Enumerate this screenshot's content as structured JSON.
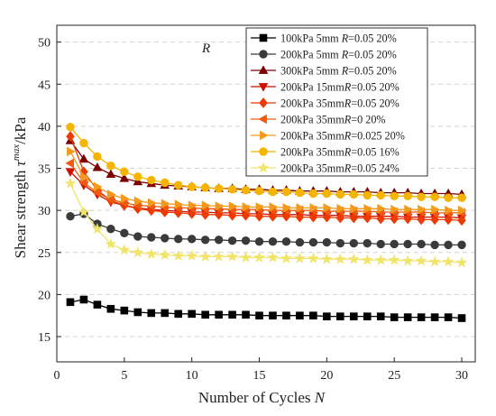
{
  "chart_data": {
    "type": "line",
    "xlabel": {
      "prefix": "Number of Cycles ",
      "var": "N"
    },
    "ylabel": {
      "prefix": "Shear strength ",
      "var": "τ",
      "sup": "max",
      "suffix": "/kPa"
    },
    "annotation": "R",
    "xlim": [
      0,
      31
    ],
    "ylim": [
      12,
      52
    ],
    "xticks": [
      0,
      5,
      10,
      15,
      20,
      25,
      30
    ],
    "yticks": [
      15,
      20,
      25,
      30,
      35,
      40,
      45,
      50
    ],
    "grid": "horizontal-dashed",
    "legend_position": "top-right",
    "x": [
      1,
      2,
      3,
      4,
      5,
      6,
      7,
      8,
      9,
      10,
      11,
      12,
      13,
      14,
      15,
      16,
      17,
      18,
      19,
      20,
      21,
      22,
      23,
      24,
      25,
      26,
      27,
      28,
      29,
      30
    ],
    "series": [
      {
        "name_parts": [
          "100kPa 5mm ",
          "R",
          "=0.05 20%"
        ],
        "color": "#000000",
        "marker": "square",
        "values": [
          19.1,
          19.4,
          18.8,
          18.3,
          18.1,
          17.9,
          17.8,
          17.8,
          17.7,
          17.7,
          17.6,
          17.6,
          17.6,
          17.6,
          17.5,
          17.5,
          17.5,
          17.5,
          17.5,
          17.4,
          17.4,
          17.4,
          17.4,
          17.4,
          17.3,
          17.3,
          17.3,
          17.3,
          17.3,
          17.2
        ]
      },
      {
        "name_parts": [
          "200kPa 5mm ",
          "R",
          "=0.05 20%"
        ],
        "color": "#3a3a3a",
        "marker": "circle",
        "values": [
          29.3,
          29.6,
          28.4,
          27.8,
          27.3,
          26.9,
          26.8,
          26.7,
          26.6,
          26.6,
          26.5,
          26.5,
          26.4,
          26.4,
          26.3,
          26.3,
          26.3,
          26.2,
          26.2,
          26.2,
          26.1,
          26.1,
          26.1,
          26.0,
          26.0,
          26.0,
          26.0,
          25.9,
          25.9,
          25.9
        ]
      },
      {
        "name_parts": [
          "300kPa 5mm ",
          "R",
          "=0.05 20%"
        ],
        "color": "#7b0000",
        "marker": "triangle-up",
        "values": [
          38.3,
          36.1,
          35.1,
          34.3,
          33.8,
          33.4,
          33.2,
          33.0,
          32.9,
          32.8,
          32.7,
          32.6,
          32.6,
          32.5,
          32.5,
          32.4,
          32.4,
          32.3,
          32.3,
          32.3,
          32.2,
          32.2,
          32.2,
          32.1,
          32.1,
          32.1,
          32.0,
          32.0,
          32.0,
          31.9
        ]
      },
      {
        "name_parts": [
          "200kPa 15mm",
          "R",
          "=0.05 20%"
        ],
        "color": "#cc1100",
        "marker": "triangle-down",
        "values": [
          34.6,
          33.0,
          31.9,
          31.0,
          30.6,
          30.3,
          30.1,
          30.0,
          29.9,
          29.8,
          29.8,
          29.7,
          29.7,
          29.6,
          29.6,
          29.5,
          29.5,
          29.5,
          29.4,
          29.4,
          29.4,
          29.3,
          29.3,
          29.3,
          29.3,
          29.2,
          29.2,
          29.2,
          29.2,
          29.1
        ]
      },
      {
        "name_parts": [
          "200kPa 35mm",
          "R",
          "=0.05 20%"
        ],
        "color": "#ee3a00",
        "marker": "diamond",
        "values": [
          38.8,
          34.6,
          32.4,
          31.2,
          30.6,
          30.2,
          30.0,
          29.8,
          29.7,
          29.6,
          29.5,
          29.5,
          29.4,
          29.4,
          29.3,
          29.3,
          29.3,
          29.2,
          29.2,
          29.2,
          29.1,
          29.1,
          29.1,
          29.0,
          29.0,
          29.0,
          28.9,
          28.9,
          28.9,
          28.8
        ]
      },
      {
        "name_parts": [
          "200kPa 35mm",
          "R",
          "=0      20%"
        ],
        "color": "#f05a10",
        "marker": "triangle-left",
        "values": [
          35.6,
          33.3,
          32.1,
          31.3,
          30.9,
          30.6,
          30.5,
          30.4,
          30.3,
          30.3,
          30.2,
          30.2,
          30.1,
          30.1,
          30.1,
          30.0,
          30.0,
          30.0,
          30.0,
          29.9,
          29.9,
          29.9,
          29.9,
          29.8,
          29.8,
          29.8,
          29.8,
          29.7,
          29.7,
          29.7
        ]
      },
      {
        "name_parts": [
          "200kPa 35mm",
          "R",
          "=0.025 20%"
        ],
        "color": "#f39a1a",
        "marker": "triangle-right",
        "values": [
          37.0,
          34.0,
          32.8,
          31.9,
          31.4,
          31.1,
          30.9,
          30.8,
          30.7,
          30.6,
          30.6,
          30.5,
          30.5,
          30.4,
          30.4,
          30.4,
          30.3,
          30.3,
          30.3,
          30.3,
          30.2,
          30.2,
          30.2,
          30.2,
          30.1,
          30.1,
          30.1,
          30.1,
          30.0,
          30.0
        ]
      },
      {
        "name_parts": [
          "200kPa 35mm",
          "R",
          "=0.05 16%"
        ],
        "color": "#f5b400",
        "marker": "circle",
        "values": [
          39.9,
          38.0,
          36.4,
          35.3,
          34.6,
          34.0,
          33.6,
          33.3,
          33.0,
          32.8,
          32.7,
          32.6,
          32.5,
          32.4,
          32.3,
          32.2,
          32.2,
          32.1,
          32.0,
          32.0,
          31.9,
          31.9,
          31.8,
          31.8,
          31.7,
          31.7,
          31.6,
          31.6,
          31.5,
          31.5
        ]
      },
      {
        "name_parts": [
          "200kPa 35mm",
          "R",
          "=0.05 24%"
        ],
        "color": "#f0e46a",
        "marker": "star",
        "values": [
          33.2,
          29.8,
          27.8,
          26.0,
          25.3,
          25.0,
          24.8,
          24.7,
          24.6,
          24.6,
          24.5,
          24.5,
          24.5,
          24.4,
          24.4,
          24.4,
          24.3,
          24.3,
          24.3,
          24.2,
          24.2,
          24.2,
          24.1,
          24.1,
          24.1,
          24.0,
          24.0,
          23.9,
          23.9,
          23.8
        ]
      }
    ]
  }
}
